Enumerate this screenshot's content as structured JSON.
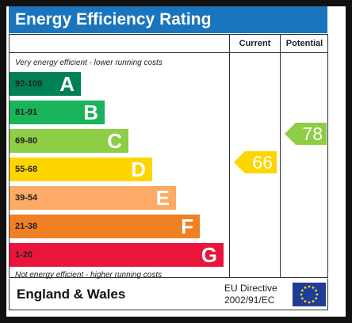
{
  "title": "Energy Efficiency Rating",
  "columns": {
    "current": "Current",
    "potential": "Potential"
  },
  "top_note": "Very energy efficient - lower running costs",
  "bottom_note": "Not energy efficient - higher running costs",
  "bands": [
    {
      "range": "92-100",
      "letter": "A",
      "color": "#008054"
    },
    {
      "range": "81-91",
      "letter": "B",
      "color": "#19b459"
    },
    {
      "range": "69-80",
      "letter": "C",
      "color": "#8dce46"
    },
    {
      "range": "55-68",
      "letter": "D",
      "color": "#ffd500"
    },
    {
      "range": "39-54",
      "letter": "E",
      "color": "#fcaa65"
    },
    {
      "range": "21-38",
      "letter": "F",
      "color": "#ef8023"
    },
    {
      "range": "1-20",
      "letter": "G",
      "color": "#e9153b"
    }
  ],
  "current": {
    "value": "66",
    "color": "#ffd500"
  },
  "potential": {
    "value": "78",
    "color": "#8dce46"
  },
  "footer": {
    "region": "England & Wales",
    "directive_line1": "EU Directive",
    "directive_line2": "2002/91/EC"
  },
  "flag_icon": "eu-flag-icon"
}
